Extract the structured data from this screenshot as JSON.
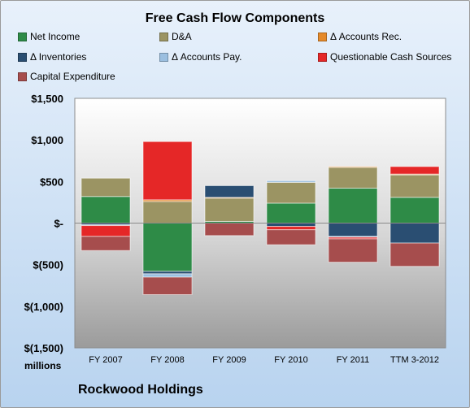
{
  "chart_data": {
    "type": "bar",
    "stacked": true,
    "title": "Free Cash Flow Components",
    "categories": [
      "FY 2007",
      "FY 2008",
      "FY 2009",
      "FY 2010",
      "FY 2011",
      "TTM 3-2012"
    ],
    "y_tick_labels": [
      "$1,500",
      "$1,000",
      "$500",
      "$-",
      "$(500)",
      "$(1,000)",
      "$(1,500)"
    ],
    "y_ticks": [
      1500,
      1000,
      500,
      0,
      -500,
      -1000,
      -1500
    ],
    "ylim": [
      -1500,
      1500
    ],
    "unit_label": "millions",
    "footer": "Rockwood Holdings",
    "legend_position": "top",
    "grid": false,
    "series": [
      {
        "name": "Net Income",
        "color": "#2e8b47",
        "values": [
          320,
          -580,
          20,
          240,
          420,
          310
        ]
      },
      {
        "name": "D&A",
        "color": "#9b9463",
        "values": [
          220,
          260,
          280,
          250,
          250,
          270
        ]
      },
      {
        "name": "Δ Accounts Rec.",
        "color": "#e58a2a",
        "values": [
          0,
          20,
          10,
          0,
          10,
          10
        ]
      },
      {
        "name": "Δ Inventories",
        "color": "#2a4e72",
        "values": [
          -20,
          -30,
          140,
          -40,
          -160,
          -240
        ]
      },
      {
        "name": "Δ Accounts Pay.",
        "color": "#9bbfe0",
        "values": [
          -10,
          -40,
          0,
          20,
          -10,
          0
        ]
      },
      {
        "name": "Questionable Cash Sources",
        "color": "#e52727",
        "values": [
          -130,
          700,
          0,
          -40,
          -20,
          90
        ]
      },
      {
        "name": "Capital Expenditure",
        "color": "#a64d4d",
        "values": [
          -170,
          -210,
          -150,
          -180,
          -280,
          -280
        ]
      }
    ]
  }
}
